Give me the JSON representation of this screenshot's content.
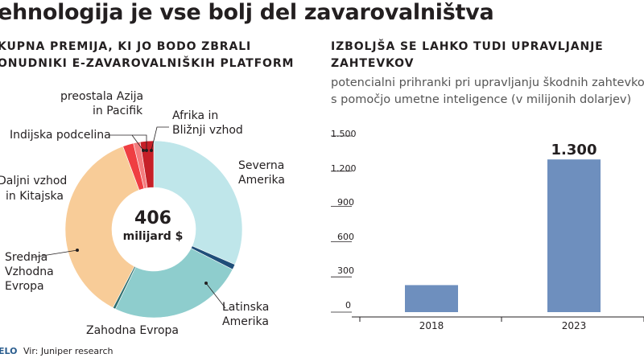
{
  "title": "ehnologija je vse bolj del zavarovalništva",
  "left_panel": {
    "header_lines": [
      "KUPNA PREMIJA, KI JO BODO ZBRALI",
      "ONUDNIKI E-ZAVAROVALNIŠKIH PLATFORM"
    ],
    "center_value": "406",
    "center_unit": "milijard $"
  },
  "right_panel": {
    "header_lines": [
      "IZBOLJŠA SE LAHKO TUDI UPRAVLJANJE",
      "ZAHTEVKOV"
    ],
    "subtitle_lines": [
      "potencialni prihranki pri upravljanju škodnih zahtevkov",
      "s pomočjo umetne inteligence (v milijonih dolarjev)"
    ]
  },
  "footer": {
    "logo": "ELO",
    "source": "Vir: Juniper research"
  },
  "chart_data": [
    {
      "type": "pie",
      "variant": "donut",
      "total_label": "406 milijard $",
      "slices": [
        {
          "label": "Severna Amerika",
          "label_lines": [
            "Severna",
            "Amerika"
          ],
          "value": 128,
          "color": "#bfe6ea"
        },
        {
          "label": "Latinska Amerika",
          "label_lines": [
            "Latinska",
            "Amerika"
          ],
          "value": 4,
          "color": "#1f4e79"
        },
        {
          "label": "Zahodna Evropa",
          "label_lines": [
            "Zahodna Evropa"
          ],
          "value": 100,
          "color": "#8ecdcd"
        },
        {
          "label": "Srednja Vzhodna Evropa",
          "label_lines": [
            "Srednja",
            "Vzhodna",
            "Evropa"
          ],
          "value": 2,
          "color": "#2f6f6f"
        },
        {
          "label": "Daljni vzhod in Kitajska",
          "label_lines": [
            "Daljni vzhod",
            "in Kitajska"
          ],
          "value": 149,
          "color": "#f8cc98"
        },
        {
          "label": "Indijska podcelina",
          "label_lines": [
            "Indijska podcelina"
          ],
          "value": 8,
          "color": "#ef3e42"
        },
        {
          "label": "preostala Azija in Pacifik",
          "label_lines": [
            "preostala Azija",
            "in Pacifik"
          ],
          "value": 5,
          "color": "#f47c7e"
        },
        {
          "label": "Afrika in Bližnji vzhod",
          "label_lines": [
            "Afrika in",
            "Bližnji vzhod"
          ],
          "value": 10,
          "color": "#c62028"
        }
      ]
    },
    {
      "type": "bar",
      "categories": [
        "2018",
        "2023"
      ],
      "values": [
        230,
        1300
      ],
      "value_labels": [
        "",
        "1.300"
      ],
      "ylim": [
        0,
        1500
      ],
      "yticks": [
        0,
        300,
        600,
        900,
        1200,
        1500
      ],
      "ytick_labels": [
        "0",
        "300",
        "600",
        "900",
        "1.200",
        "1.500"
      ],
      "bar_color": "#6e8fbe",
      "grid": false
    }
  ]
}
